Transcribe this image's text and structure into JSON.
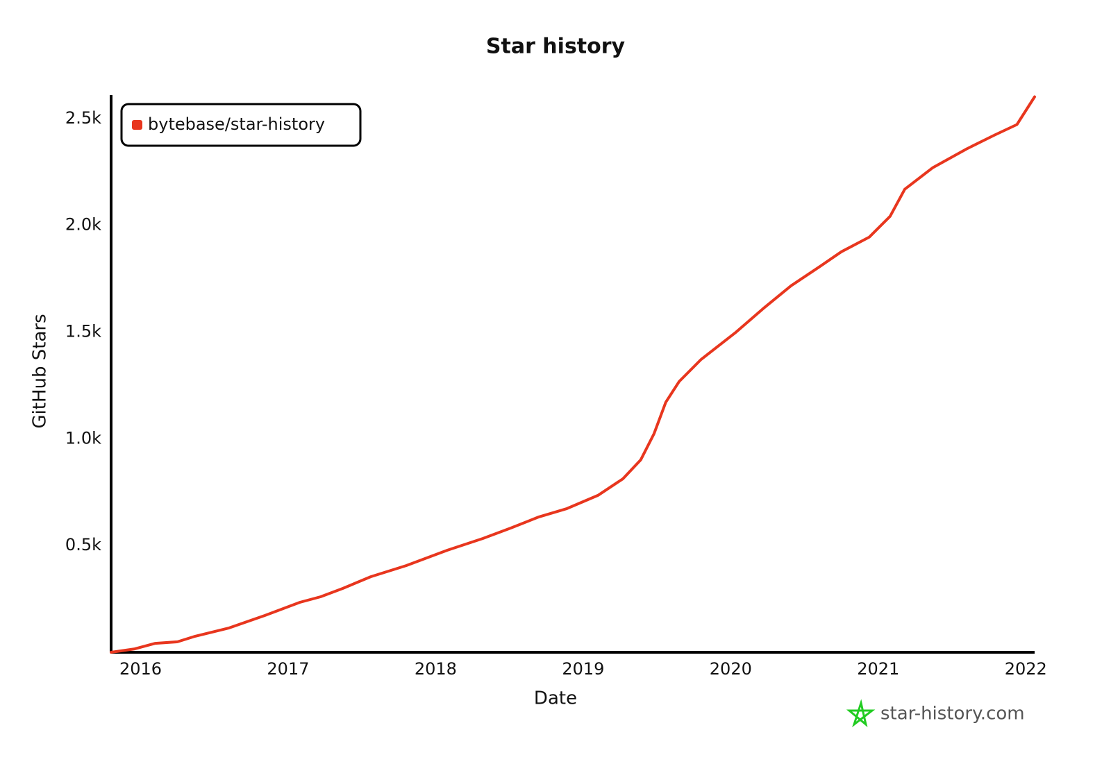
{
  "chart_data": {
    "type": "line",
    "title": "Star history",
    "x_label": "Date",
    "y_label": "GitHub Stars",
    "x": [
      2015.8,
      2015.96,
      2016.1,
      2016.25,
      2016.37,
      2016.6,
      2016.84,
      2017.08,
      2017.22,
      2017.37,
      2017.56,
      2017.8,
      2018.08,
      2018.32,
      2018.51,
      2018.7,
      2018.89,
      2019.1,
      2019.27,
      2019.39,
      2019.48,
      2019.56,
      2019.65,
      2019.8,
      2020.03,
      2020.22,
      2020.41,
      2020.6,
      2020.75,
      2020.94,
      2021.08,
      2021.18,
      2021.37,
      2021.6,
      2021.79,
      2021.94,
      2022.06
    ],
    "series": [
      {
        "name": "bytebase/star-history",
        "color": "#e8361e",
        "values": [
          0,
          16,
          42,
          49,
          75,
          114,
          172,
          234,
          260,
          299,
          354,
          406,
          478,
          533,
          582,
          634,
          673,
          735,
          813,
          901,
          1024,
          1171,
          1268,
          1372,
          1496,
          1610,
          1717,
          1805,
          1876,
          1945,
          2042,
          2169,
          2270,
          2358,
          2423,
          2472,
          2602
        ]
      }
    ],
    "xlim": [
      2015.8,
      2022.06
    ],
    "xticks": [
      2016,
      2017,
      2018,
      2019,
      2020,
      2021,
      2022
    ],
    "ylim": [
      0,
      2610
    ],
    "yticks": [
      {
        "value": 500,
        "label": "0.5k"
      },
      {
        "value": 1000,
        "label": "1.0k"
      },
      {
        "value": 1500,
        "label": "1.5k"
      },
      {
        "value": 2000,
        "label": "2.0k"
      },
      {
        "value": 2500,
        "label": "2.5k"
      }
    ],
    "legend": "upper left",
    "grid": false
  },
  "watermark": "star-history.com"
}
